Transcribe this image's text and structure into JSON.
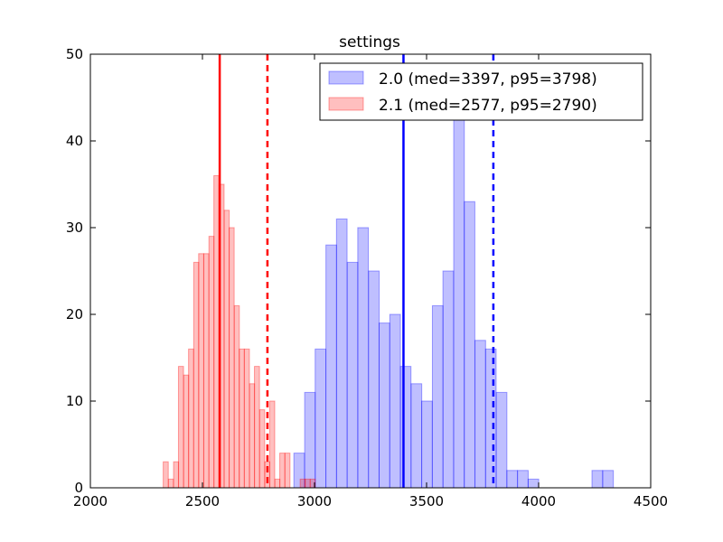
{
  "chart_data": {
    "type": "histogram",
    "title": "settings",
    "xlim": [
      2000,
      4500
    ],
    "ylim": [
      0,
      50
    ],
    "xticks": [
      2000,
      2500,
      3000,
      3500,
      4000,
      4500
    ],
    "yticks": [
      0,
      10,
      20,
      30,
      40,
      50
    ],
    "xtick_labels": [
      "2000",
      "2500",
      "3000",
      "3500",
      "4000",
      "4500"
    ],
    "ytick_labels": [
      "0",
      "10",
      "20",
      "30",
      "40",
      "50"
    ],
    "grid": false,
    "legend_position": "upper right",
    "series": [
      {
        "name": "2.0 (med=3397, p95=3798)",
        "color": "#0000ff",
        "fill_color": "#bfbfff",
        "bin_width": 47.4,
        "bins": [
          {
            "x0": 2908,
            "count": 4
          },
          {
            "x0": 2956,
            "count": 11
          },
          {
            "x0": 3003,
            "count": 16
          },
          {
            "x0": 3051,
            "count": 28
          },
          {
            "x0": 3098,
            "count": 31
          },
          {
            "x0": 3146,
            "count": 26
          },
          {
            "x0": 3193,
            "count": 30
          },
          {
            "x0": 3241,
            "count": 25
          },
          {
            "x0": 3288,
            "count": 19
          },
          {
            "x0": 3336,
            "count": 20
          },
          {
            "x0": 3383,
            "count": 14
          },
          {
            "x0": 3431,
            "count": 12
          },
          {
            "x0": 3478,
            "count": 10
          },
          {
            "x0": 3526,
            "count": 21
          },
          {
            "x0": 3573,
            "count": 25
          },
          {
            "x0": 3621,
            "count": 43
          },
          {
            "x0": 3668,
            "count": 33
          },
          {
            "x0": 3716,
            "count": 17
          },
          {
            "x0": 3763,
            "count": 16
          },
          {
            "x0": 3811,
            "count": 11
          },
          {
            "x0": 3858,
            "count": 2
          },
          {
            "x0": 3906,
            "count": 2
          },
          {
            "x0": 3953,
            "count": 1
          },
          {
            "x0": 4001,
            "count": 0
          },
          {
            "x0": 4048,
            "count": 0
          },
          {
            "x0": 4096,
            "count": 0
          },
          {
            "x0": 4143,
            "count": 0
          },
          {
            "x0": 4191,
            "count": 0
          },
          {
            "x0": 4238,
            "count": 2
          },
          {
            "x0": 4286,
            "count": 2
          }
        ],
        "median": 3397,
        "p95": 3798
      },
      {
        "name": "2.1 (med=2577, p95=2790)",
        "color": "#ff0000",
        "fill_color": "#ffbfbf",
        "bin_width": 22.6,
        "bins": [
          {
            "x0": 2325,
            "count": 3
          },
          {
            "x0": 2348,
            "count": 1
          },
          {
            "x0": 2371,
            "count": 3
          },
          {
            "x0": 2393,
            "count": 14
          },
          {
            "x0": 2416,
            "count": 13
          },
          {
            "x0": 2438,
            "count": 16
          },
          {
            "x0": 2461,
            "count": 26
          },
          {
            "x0": 2483,
            "count": 27
          },
          {
            "x0": 2506,
            "count": 27
          },
          {
            "x0": 2529,
            "count": 29
          },
          {
            "x0": 2551,
            "count": 36
          },
          {
            "x0": 2574,
            "count": 35
          },
          {
            "x0": 2597,
            "count": 32
          },
          {
            "x0": 2619,
            "count": 30
          },
          {
            "x0": 2642,
            "count": 21
          },
          {
            "x0": 2664,
            "count": 16
          },
          {
            "x0": 2687,
            "count": 16
          },
          {
            "x0": 2710,
            "count": 12
          },
          {
            "x0": 2732,
            "count": 14
          },
          {
            "x0": 2755,
            "count": 9
          },
          {
            "x0": 2778,
            "count": 3
          },
          {
            "x0": 2800,
            "count": 10
          },
          {
            "x0": 2823,
            "count": 1
          },
          {
            "x0": 2845,
            "count": 4
          },
          {
            "x0": 2868,
            "count": 4
          },
          {
            "x0": 2891,
            "count": 0
          },
          {
            "x0": 2913,
            "count": 0
          },
          {
            "x0": 2936,
            "count": 1
          },
          {
            "x0": 2958,
            "count": 1
          },
          {
            "x0": 2981,
            "count": 1
          }
        ],
        "median": 2577,
        "p95": 2790
      }
    ]
  }
}
